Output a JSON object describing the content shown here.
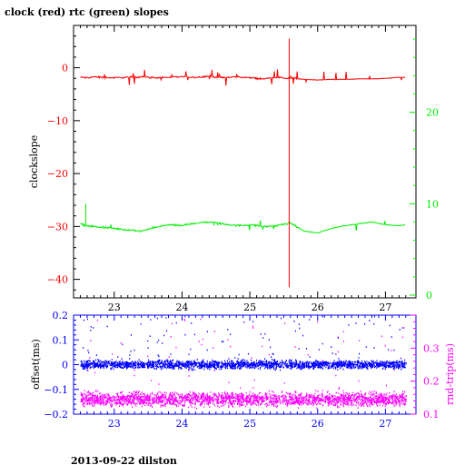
{
  "title": "clock (red) rtc (green) slopes",
  "footer": "2013-09-22 dilston",
  "colors": {
    "red": "#ff0000",
    "green": "#00ee00",
    "blue": "#0000ff",
    "magenta": "#ff00ff",
    "black": "#000000"
  },
  "chart_data": [
    {
      "type": "line",
      "title": "clock (red) rtc (green) slopes",
      "ylabel": "clockslope",
      "y2label": "",
      "xlim": [
        22.4,
        27.45
      ],
      "ylim": [
        -43.5,
        8
      ],
      "y2lim": [
        -0.3,
        29.5
      ],
      "x_ticks": [
        23,
        24,
        25,
        26,
        27
      ],
      "y_ticks": [
        0,
        -10,
        -20,
        -30,
        -40
      ],
      "y2_ticks": [
        0,
        10,
        20
      ],
      "series": [
        {
          "name": "clock",
          "color": "#ff0000",
          "axis": "left",
          "x": [
            22.5,
            22.6,
            22.7,
            22.8,
            23.0,
            23.2,
            23.4,
            23.6,
            23.8,
            24.0,
            24.2,
            24.4,
            24.6,
            24.8,
            25.0,
            25.2,
            25.4,
            25.55,
            25.65,
            25.8,
            26.0,
            26.2,
            26.4,
            26.6,
            26.8,
            27.0,
            27.2,
            27.3
          ],
          "values": [
            -1.8,
            -1.9,
            -1.7,
            -1.8,
            -1.9,
            -1.8,
            -1.7,
            -1.9,
            -1.8,
            -1.7,
            -1.8,
            -1.6,
            -1.9,
            -1.7,
            -1.9,
            -2.1,
            -1.8,
            -2.0,
            -2.0,
            -2.2,
            -2.3,
            -2.2,
            -2.2,
            -2.1,
            -2.1,
            -2.0,
            -1.8,
            -1.8
          ]
        },
        {
          "name": "rtc",
          "color": "#00ee00",
          "axis": "right",
          "x": [
            22.5,
            22.6,
            22.8,
            23.0,
            23.2,
            23.4,
            23.6,
            23.8,
            24.0,
            24.2,
            24.4,
            24.6,
            24.8,
            25.0,
            25.2,
            25.4,
            25.6,
            25.8,
            26.0,
            26.2,
            26.4,
            26.6,
            26.8,
            27.0,
            27.2,
            27.3
          ],
          "values": [
            7.8,
            7.6,
            7.4,
            7.3,
            7.1,
            7.0,
            7.4,
            7.7,
            7.6,
            7.9,
            8.0,
            7.8,
            7.6,
            7.7,
            7.5,
            7.6,
            7.9,
            7.0,
            6.8,
            7.3,
            7.6,
            7.8,
            8.0,
            7.7,
            7.6,
            7.7
          ]
        }
      ],
      "annotations": [
        {
          "type": "spike",
          "series": "clock",
          "x": 25.58,
          "from": 5.5,
          "to": -41.5
        },
        {
          "type": "spike",
          "series": "rtc",
          "x": 22.58,
          "to": 10.0
        }
      ]
    },
    {
      "type": "scatter",
      "xlabel": "",
      "ylabel": "offset(ms)",
      "y2label": "rnd-trip(ms)",
      "xlim": [
        22.4,
        27.45
      ],
      "ylim": [
        -0.2,
        0.2
      ],
      "y2lim": [
        0.1,
        0.4
      ],
      "x_ticks": [
        23,
        24,
        25,
        26,
        27
      ],
      "y_ticks": [
        0.2,
        0.1,
        0,
        -0.1,
        -0.2
      ],
      "y_tick_labels": [
        "0.2",
        "0.1",
        "0",
        "−0.1",
        "−0.2"
      ],
      "y2_ticks": [
        0.1,
        0.2,
        0.3
      ],
      "x_range": [
        22.5,
        27.3
      ],
      "series": [
        {
          "name": "offset",
          "color": "#0000ff",
          "axis": "left",
          "band_center": 0.0,
          "band_halfwidth": 0.025,
          "outlier_max": 0.2
        },
        {
          "name": "rnd-trip",
          "color": "#ff00ff",
          "axis": "right",
          "band_center": 0.145,
          "band_halfwidth": 0.03
        }
      ]
    }
  ]
}
